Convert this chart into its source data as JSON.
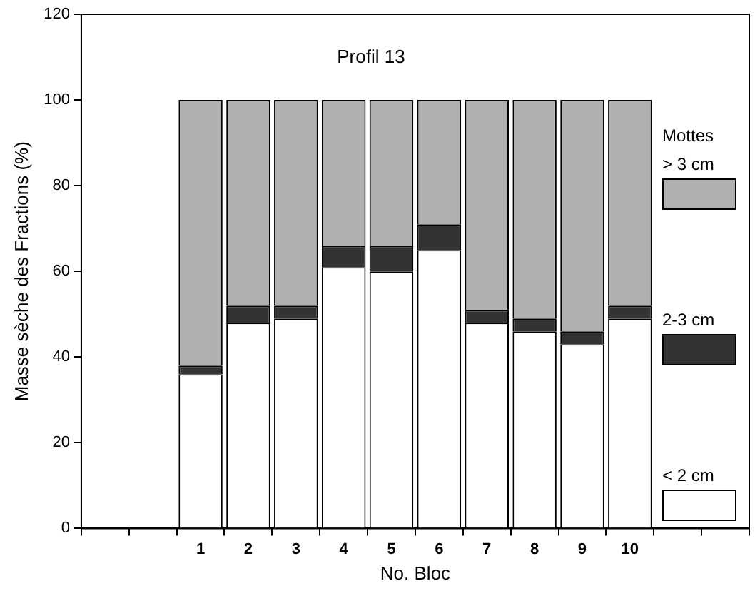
{
  "chart_data": {
    "type": "bar",
    "title": "Profil 13",
    "xlabel": "No. Bloc",
    "ylabel": "Masse sèche des Fractions (%)",
    "legend_title": "Mottes",
    "stacked": true,
    "legend": "right",
    "grid": false,
    "categories": [
      null,
      null,
      "1",
      "2",
      "3",
      "4",
      "5",
      "6",
      "7",
      "8",
      "9",
      "10",
      null,
      null
    ],
    "series": [
      {
        "name": "< 2 cm",
        "color": "#ffffff",
        "values": [
          null,
          null,
          36,
          48,
          49,
          61,
          60,
          65,
          48,
          46,
          43,
          49,
          null,
          null
        ]
      },
      {
        "name": "2-3 cm",
        "color": "#333333",
        "values": [
          null,
          null,
          2,
          4,
          3,
          5,
          6,
          6,
          3,
          3,
          3,
          3,
          null,
          null
        ]
      },
      {
        "name": "> 3 cm",
        "color": "#b0b0b0",
        "values": [
          null,
          null,
          62,
          48,
          48,
          34,
          34,
          29,
          49,
          51,
          54,
          48,
          null,
          null
        ]
      }
    ],
    "ylim": [
      0,
      120
    ],
    "yticks": [
      0,
      20,
      40,
      60,
      80,
      100,
      120
    ]
  }
}
